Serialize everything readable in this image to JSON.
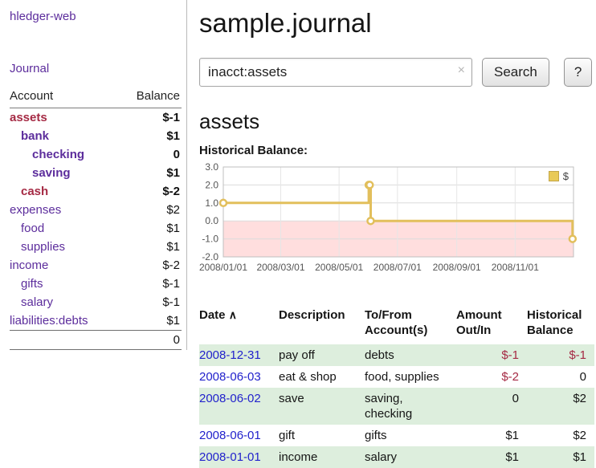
{
  "colors": {
    "purple": "#5c2d9c",
    "negative": "#a52a44",
    "date_blue": "#2222cc",
    "row_green": "#ddeedd",
    "legend_fill": "#e9ca58"
  },
  "app": {
    "title": "hledger-web",
    "nav_journal": "Journal"
  },
  "sidebar": {
    "header": {
      "account": "Account",
      "balance": "Balance"
    },
    "accounts": [
      {
        "name": "assets",
        "balance": "$-1",
        "depth": 0,
        "bold": true,
        "name_style": "neg",
        "bal_style": "neg"
      },
      {
        "name": "bank",
        "balance": "$1",
        "depth": 1,
        "bold": true,
        "name_style": "link",
        "bal_style": "pos"
      },
      {
        "name": "checking",
        "balance": "0",
        "depth": 2,
        "bold": true,
        "name_style": "link",
        "bal_style": "pos"
      },
      {
        "name": "saving",
        "balance": "$1",
        "depth": 2,
        "bold": true,
        "name_style": "link",
        "bal_style": "pos"
      },
      {
        "name": "cash",
        "balance": "$-2",
        "depth": 1,
        "bold": true,
        "name_style": "neg",
        "bal_style": "neg"
      },
      {
        "name": "expenses",
        "balance": "$2",
        "depth": 0,
        "bold": false,
        "name_style": "link",
        "bal_style": "pos"
      },
      {
        "name": "food",
        "balance": "$1",
        "depth": 1,
        "bold": false,
        "name_style": "link",
        "bal_style": "pos"
      },
      {
        "name": "supplies",
        "balance": "$1",
        "depth": 1,
        "bold": false,
        "name_style": "link",
        "bal_style": "pos"
      },
      {
        "name": "income",
        "balance": "$-2",
        "depth": 0,
        "bold": false,
        "name_style": "link",
        "bal_style": "neg"
      },
      {
        "name": "gifts",
        "balance": "$-1",
        "depth": 1,
        "bold": false,
        "name_style": "link",
        "bal_style": "neg"
      },
      {
        "name": "salary",
        "balance": "$-1",
        "depth": 1,
        "bold": false,
        "name_style": "link",
        "bal_style": "neg"
      },
      {
        "name": "liabilities:debts",
        "balance": "$1",
        "depth": 0,
        "bold": false,
        "name_style": "link",
        "bal_style": "pos"
      }
    ],
    "total": "0"
  },
  "main": {
    "title": "sample.journal",
    "search": {
      "value": "inacct:assets",
      "clear_icon": "×",
      "button": "Search",
      "help_button": "?"
    },
    "account_title": "assets",
    "chart_label": "Historical Balance:"
  },
  "chart_data": {
    "type": "line",
    "step": true,
    "title": "Historical Balance",
    "series": [
      {
        "name": "$",
        "color": "#e2bf5c",
        "points": [
          [
            "2008-01-01",
            1
          ],
          [
            "2008-06-01",
            2
          ],
          [
            "2008-06-02",
            2
          ],
          [
            "2008-06-03",
            0
          ],
          [
            "2008-12-31",
            -1
          ]
        ]
      }
    ],
    "x_ticks": [
      "2008/01/01",
      "2008/03/01",
      "2008/05/01",
      "2008/07/01",
      "2008/09/01",
      "2008/11/01"
    ],
    "y_ticks": [
      3.0,
      2.0,
      1.0,
      0.0,
      -1.0,
      -2.0
    ],
    "ylim": [
      -2,
      3
    ],
    "x_range_days": [
      0,
      366
    ],
    "negative_region_color": "#ffdede",
    "grid": true,
    "legend": {
      "label": "$",
      "position": "top-right"
    }
  },
  "register": {
    "headers": {
      "date": "Date",
      "description": "Description",
      "account": "To/From Account(s)",
      "amount": "Amount Out/In",
      "balance": "Historical Balance"
    },
    "sort_icon": "∧",
    "rows": [
      {
        "date": "2008-12-31",
        "description": "pay off",
        "account": "debts",
        "amount": "$-1",
        "balance": "$-1",
        "amount_neg": true,
        "balance_neg": true,
        "shaded": true
      },
      {
        "date": "2008-06-03",
        "description": "eat & shop",
        "account": "food, supplies",
        "amount": "$-2",
        "balance": "0",
        "amount_neg": true,
        "balance_neg": false,
        "shaded": false
      },
      {
        "date": "2008-06-02",
        "description": "save",
        "account": "saving, checking",
        "amount": "0",
        "balance": "$2",
        "amount_neg": false,
        "balance_neg": false,
        "shaded": true
      },
      {
        "date": "2008-06-01",
        "description": "gift",
        "account": "gifts",
        "amount": "$1",
        "balance": "$2",
        "amount_neg": false,
        "balance_neg": false,
        "shaded": false
      },
      {
        "date": "2008-01-01",
        "description": "income",
        "account": "salary",
        "amount": "$1",
        "balance": "$1",
        "amount_neg": false,
        "balance_neg": false,
        "shaded": true
      }
    ]
  }
}
